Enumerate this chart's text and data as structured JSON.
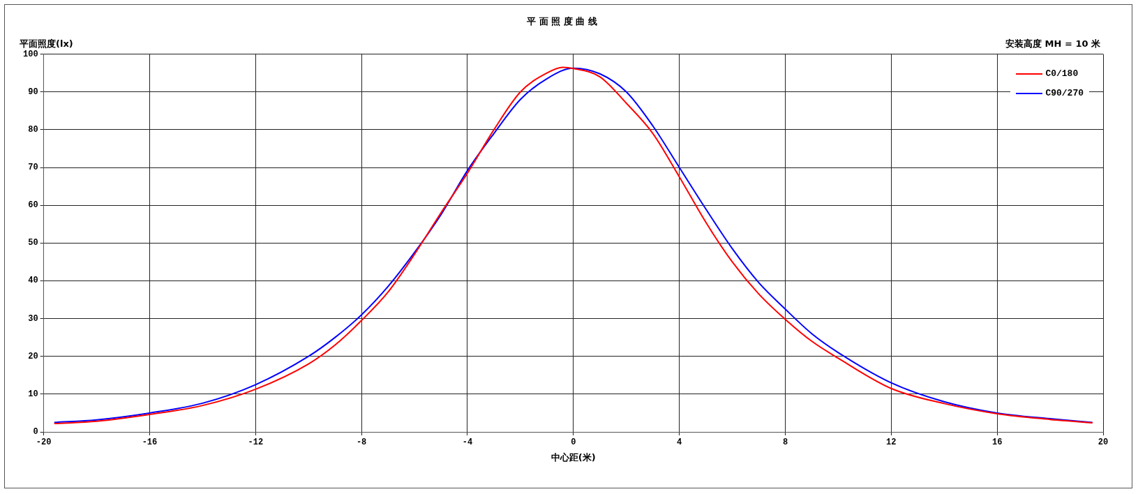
{
  "chart_data": {
    "type": "line",
    "title": "平 面 照 度 曲 线",
    "xlabel": "中心距(米)",
    "ylabel": "平面照度(lx)",
    "annotations": [
      "安装高度 MH = 10 米"
    ],
    "xlim": [
      -20,
      20
    ],
    "xticks": [
      -20,
      -16,
      -12,
      -8,
      -4,
      0,
      4,
      8,
      12,
      16,
      20
    ],
    "ylim": [
      0,
      100
    ],
    "yticks": [
      0,
      10,
      20,
      30,
      40,
      50,
      60,
      70,
      80,
      90,
      100
    ],
    "grid": true,
    "legend": "top right",
    "marker": "none",
    "line_style": "solid",
    "series": [
      {
        "name": "C0/180",
        "color": "#ff0000",
        "x": [
          -19.6,
          -18,
          -16,
          -14,
          -12,
          -10,
          -9,
          -8,
          -7,
          -6,
          -5,
          -4,
          -3,
          -2,
          -1,
          -0.4,
          0,
          1,
          2,
          3,
          4,
          5,
          6,
          7,
          8,
          9,
          10,
          12,
          14,
          16,
          18,
          19.6
        ],
        "values": [
          2.2,
          2.8,
          4.6,
          7,
          11.3,
          18,
          23,
          29.5,
          37,
          47,
          58,
          68.5,
          80,
          90,
          95,
          96.5,
          96.2,
          94,
          87,
          79,
          67.5,
          55.5,
          45,
          36.5,
          29.8,
          24,
          19.5,
          11.5,
          7.5,
          4.8,
          3.3,
          2.4
        ]
      },
      {
        "name": "C90/270",
        "color": "#0000ff",
        "x": [
          -19.6,
          -18,
          -16,
          -14,
          -12,
          -10,
          -9,
          -8,
          -7,
          -6,
          -5,
          -4,
          -3,
          -2,
          -1,
          0,
          1,
          2,
          3,
          4,
          5,
          6,
          7,
          8,
          9,
          10,
          12,
          14,
          16,
          18,
          19.6
        ],
        "values": [
          2.5,
          3.2,
          5,
          7.6,
          12.5,
          20,
          25,
          31,
          38.5,
          47.5,
          57.5,
          69.2,
          79,
          88,
          93.5,
          96.3,
          94.8,
          90,
          81,
          70,
          59,
          48.5,
          39.5,
          32.5,
          26,
          21,
          13,
          8,
          5,
          3.5,
          2.5
        ]
      }
    ]
  }
}
